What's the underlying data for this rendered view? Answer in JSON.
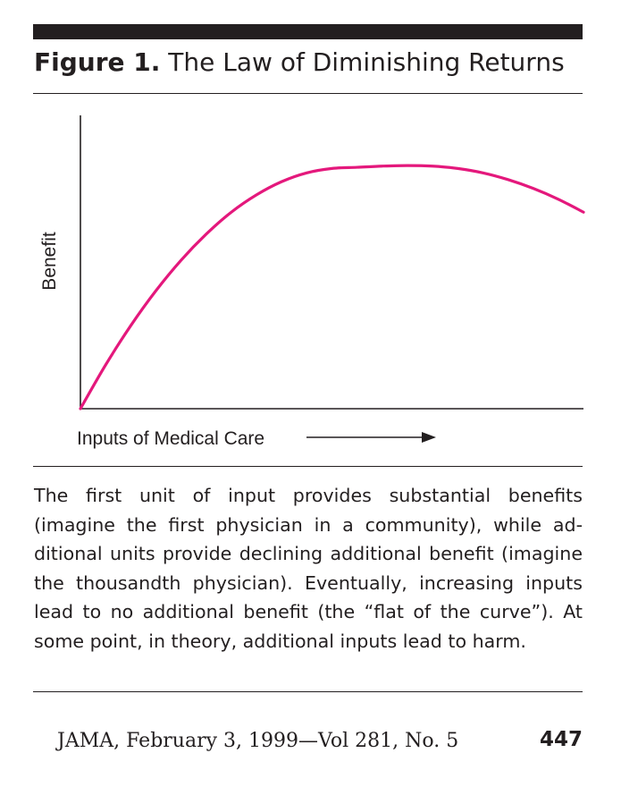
{
  "figure": {
    "label": "Figure 1.",
    "title": "The Law of Diminishing Returns"
  },
  "chart_data": {
    "type": "line",
    "title": "The Law of Diminishing Returns",
    "xlabel": "Inputs of Medical Care",
    "ylabel": "Benefit",
    "x_tick_labels": [],
    "y_tick_labels": [],
    "grid": false,
    "legend": "none",
    "xlim": [
      0,
      10
    ],
    "ylim": [
      0,
      10
    ],
    "series": [
      {
        "color": "#e4187c",
        "x": [
          0,
          0.5,
          1,
          1.5,
          2,
          2.5,
          3,
          3.5,
          4,
          4.5,
          5,
          5.5,
          6,
          6.5,
          7,
          7.5,
          8,
          8.5,
          9,
          9.5,
          10
        ],
        "y": [
          0,
          1.49,
          2.83,
          4.02,
          5.06,
          5.95,
          6.7,
          7.29,
          7.74,
          8.04,
          8.19,
          8.23,
          8.27,
          8.29,
          8.27,
          8.19,
          8.04,
          7.81,
          7.51,
          7.14,
          6.7
        ]
      }
    ],
    "x_axis_arrow": true
  },
  "caption": "The first unit of input provides substantial benefits (imagine the first physician in a community), while ad­ditional units provide declining additional benefit (imag­ine the thousandth physician). Eventually, increasing inputs lead to no additional benefit (the “flat of the curve”). At some point, in theory, additional inputs lead to harm.",
  "footer": {
    "citation": "JAMA, February 3, 1999—Vol 281, No. 5",
    "page_number": "447"
  },
  "colors": {
    "ink": "#231f20",
    "curve": "#e4187c"
  }
}
